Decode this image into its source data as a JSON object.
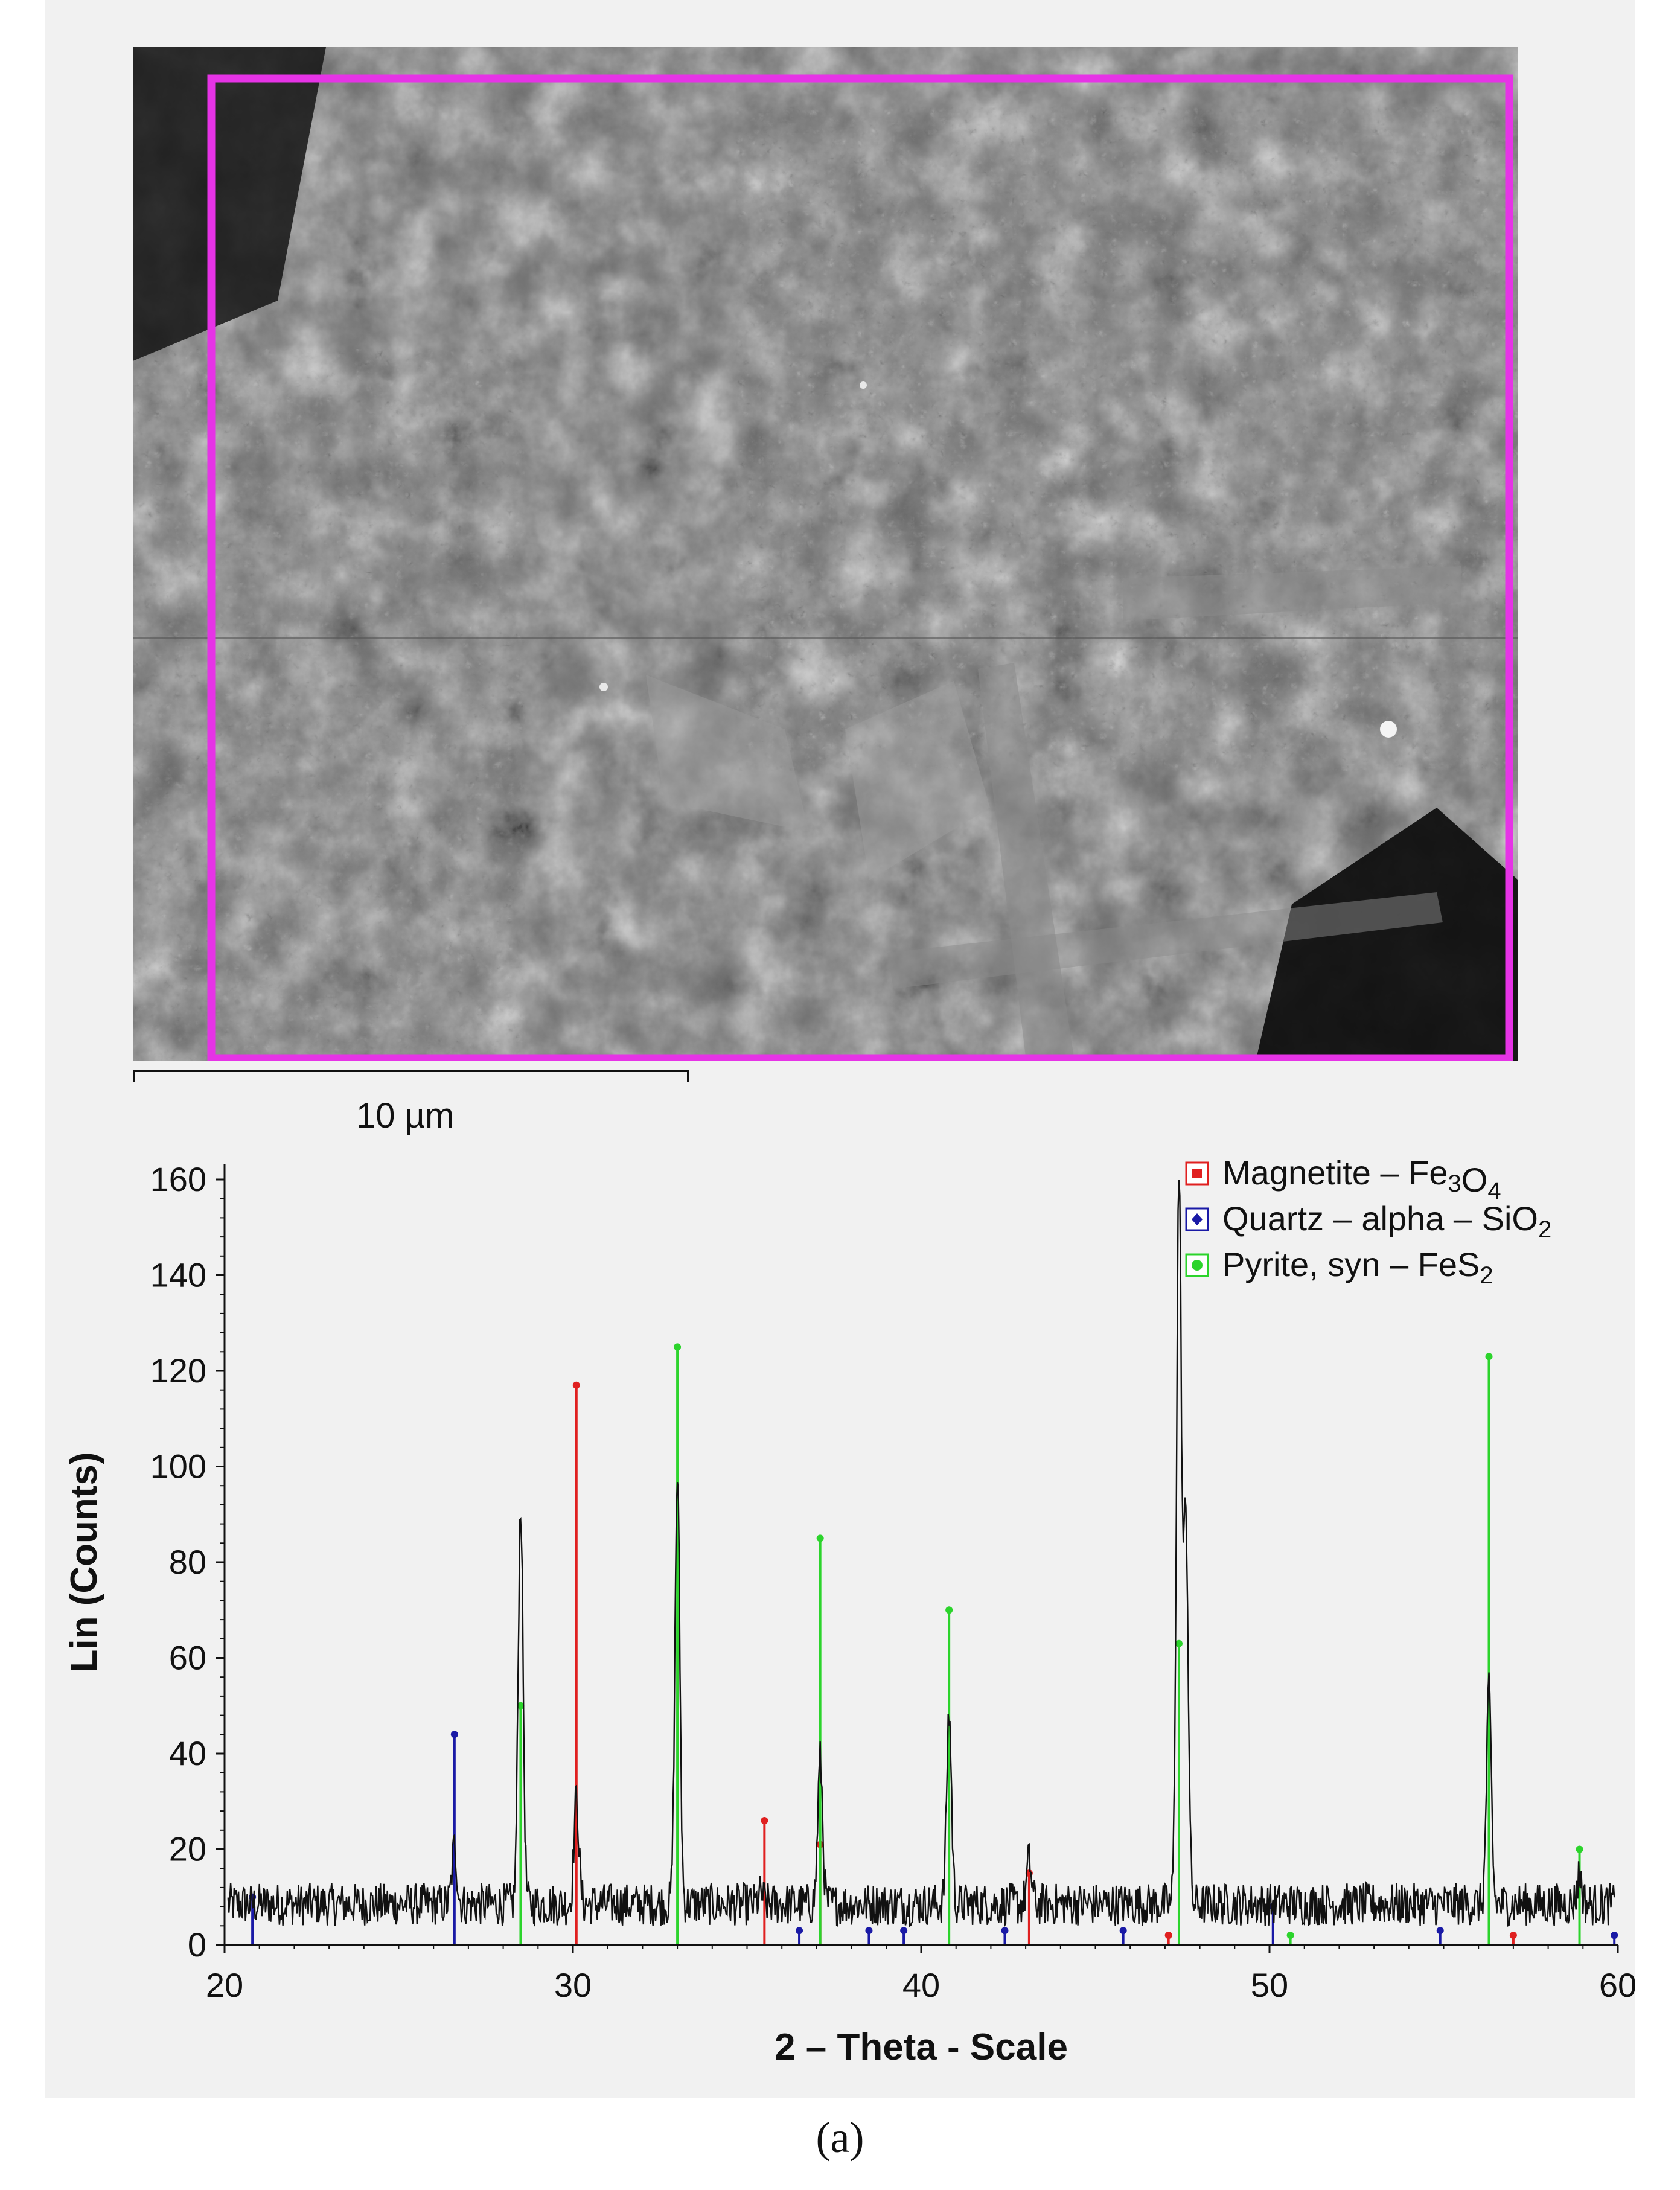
{
  "scale_bar": {
    "label": "10 µm"
  },
  "caption": "(a)",
  "chart_data": {
    "type": "line",
    "xlabel": "2 – Theta - Scale",
    "ylabel": "Lin (Counts)",
    "xlim": [
      20,
      60
    ],
    "ylim": [
      0,
      160
    ],
    "x_ticks": [
      20,
      30,
      40,
      50,
      60
    ],
    "y_ticks": [
      0,
      20,
      40,
      60,
      80,
      100,
      120,
      140,
      160
    ],
    "legend_placement": "top-right",
    "legend": [
      {
        "name": "Magnetite",
        "formula_base": "Magnetite – Fe",
        "sub1": "3",
        "mid": "O",
        "sub2": "4",
        "color": "#e02020",
        "marker": "square"
      },
      {
        "name": "Quartz",
        "formula_base": "Quartz – alpha – SiO",
        "sub1": "2",
        "mid": "",
        "sub2": "",
        "color": "#1a1aa6",
        "marker": "diamond"
      },
      {
        "name": "Pyrite",
        "formula_base": "Pyrite, syn – FeS",
        "sub1": "2",
        "mid": "",
        "sub2": "",
        "color": "#2cd42c",
        "marker": "circle"
      }
    ],
    "measured_peaks": [
      {
        "x": 26.6,
        "y": 22
      },
      {
        "x": 28.5,
        "y": 94
      },
      {
        "x": 30.1,
        "y": 32
      },
      {
        "x": 33.0,
        "y": 100
      },
      {
        "x": 35.4,
        "y": 12
      },
      {
        "x": 37.1,
        "y": 40
      },
      {
        "x": 40.8,
        "y": 50
      },
      {
        "x": 43.1,
        "y": 19
      },
      {
        "x": 47.4,
        "y": 162
      },
      {
        "x": 47.6,
        "y": 90
      },
      {
        "x": 56.3,
        "y": 54
      },
      {
        "x": 58.9,
        "y": 16
      }
    ],
    "background_level": 10,
    "reference_lines": [
      {
        "phase": "Magnetite",
        "color": "#e02020",
        "peaks": [
          {
            "x": 30.1,
            "y": 117
          },
          {
            "x": 35.5,
            "y": 26
          },
          {
            "x": 37.1,
            "y": 21
          },
          {
            "x": 43.1,
            "y": 15
          },
          {
            "x": 47.1,
            "y": 2
          },
          {
            "x": 57.0,
            "y": 2
          }
        ]
      },
      {
        "phase": "Quartz",
        "color": "#1a1aa6",
        "peaks": [
          {
            "x": 20.8,
            "y": 10
          },
          {
            "x": 26.6,
            "y": 44
          },
          {
            "x": 36.5,
            "y": 3
          },
          {
            "x": 38.5,
            "y": 3
          },
          {
            "x": 39.5,
            "y": 3
          },
          {
            "x": 42.4,
            "y": 3
          },
          {
            "x": 45.8,
            "y": 3
          },
          {
            "x": 50.1,
            "y": 8
          },
          {
            "x": 54.9,
            "y": 3
          },
          {
            "x": 59.9,
            "y": 2
          }
        ]
      },
      {
        "phase": "Pyrite",
        "color": "#2cd42c",
        "peaks": [
          {
            "x": 28.5,
            "y": 50
          },
          {
            "x": 33.0,
            "y": 125
          },
          {
            "x": 37.1,
            "y": 85
          },
          {
            "x": 40.8,
            "y": 70
          },
          {
            "x": 47.4,
            "y": 63
          },
          {
            "x": 50.6,
            "y": 2
          },
          {
            "x": 56.3,
            "y": 123
          },
          {
            "x": 58.9,
            "y": 20
          }
        ]
      }
    ]
  }
}
